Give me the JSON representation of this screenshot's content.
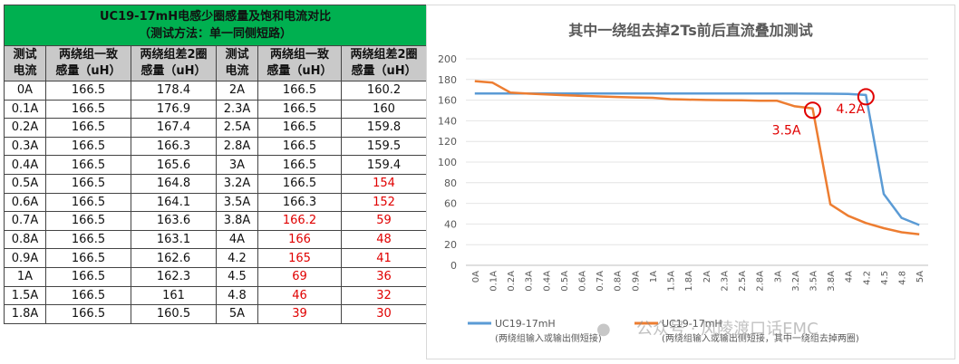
{
  "table": {
    "title": "UC19-17mH电感少圈感量及饱和电流对比",
    "subtitle": "（测试方法：单一同侧短路）",
    "headers": [
      {
        "line1": "测试",
        "line2": "电流"
      },
      {
        "line1": "两绕组一致",
        "line2": "感量（uH）"
      },
      {
        "line1": "两绕组差2圈",
        "line2": "感量（uH）"
      },
      {
        "line1": "测试",
        "line2": "电流"
      },
      {
        "line1": "两绕组一致",
        "line2": "感量（uH）"
      },
      {
        "line1": "两绕组差2圈",
        "line2": "感量（uH）"
      }
    ],
    "rows": [
      [
        "0A",
        "166.5",
        "178.4",
        "2A",
        "166.5",
        "160.2"
      ],
      [
        "0.1A",
        "166.5",
        "176.9",
        "2.3A",
        "166.5",
        "160"
      ],
      [
        "0.2A",
        "166.5",
        "167.4",
        "2.5A",
        "166.5",
        "159.8"
      ],
      [
        "0.3A",
        "166.5",
        "166.3",
        "2.8A",
        "166.5",
        "159.5"
      ],
      [
        "0.4A",
        "166.5",
        "165.6",
        "3A",
        "166.5",
        "159.4"
      ],
      [
        "0.5A",
        "166.5",
        "164.8",
        "3.2A",
        "166.5",
        "154"
      ],
      [
        "0.6A",
        "166.5",
        "164.1",
        "3.5A",
        "166.3",
        "152"
      ],
      [
        "0.7A",
        "166.5",
        "163.6",
        "3.8A",
        "166.2",
        "59"
      ],
      [
        "0.8A",
        "166.5",
        "163.1",
        "4A",
        "166",
        "48"
      ],
      [
        "0.9A",
        "166.5",
        "162.6",
        "4.2",
        "165",
        "41"
      ],
      [
        "1A",
        "166.5",
        "162.3",
        "4.5",
        "69",
        "36"
      ],
      [
        "1.5A",
        "166.5",
        "161",
        "4.8",
        "46",
        "32"
      ],
      [
        "1.8A",
        "166.5",
        "160.5",
        "5A",
        "39",
        "30"
      ]
    ],
    "red_cells": [
      [
        5,
        5
      ],
      [
        6,
        5
      ],
      [
        7,
        4
      ],
      [
        7,
        5
      ],
      [
        8,
        4
      ],
      [
        8,
        5
      ],
      [
        9,
        4
      ],
      [
        9,
        5
      ],
      [
        10,
        4
      ],
      [
        10,
        5
      ],
      [
        11,
        4
      ],
      [
        11,
        5
      ],
      [
        12,
        4
      ],
      [
        12,
        5
      ]
    ],
    "colors": {
      "title_bg": "#00b050",
      "header_bg": "#c9c9c9",
      "highlight_text": "#e00000"
    }
  },
  "chart_data": {
    "type": "line",
    "title": "其中一绕组去掉2Ts前后直流叠加测试",
    "xlabel": "",
    "ylabel": "",
    "ylim": [
      0,
      200
    ],
    "yticks": [
      0,
      20,
      40,
      60,
      80,
      100,
      120,
      140,
      160,
      180,
      200
    ],
    "grid": true,
    "legend_position": "bottom-left",
    "categories": [
      "0A",
      "0.1A",
      "0.2A",
      "0.3A",
      "0.4A",
      "0.5A",
      "0.6A",
      "0.7A",
      "0.8A",
      "0.9A",
      "1A",
      "1.5A",
      "1.8A",
      "2A",
      "2.3A",
      "2.5A",
      "2.8A",
      "3A",
      "3.2A",
      "3.5A",
      "3.8A",
      "4A",
      "4.2",
      "4.5",
      "4.8",
      "5A"
    ],
    "series": [
      {
        "name": "UC19-17mH",
        "name2": "(两绕组输入或输出侧短接)",
        "color": "#5b9bd5",
        "values": [
          166.5,
          166.5,
          166.5,
          166.5,
          166.5,
          166.5,
          166.5,
          166.5,
          166.5,
          166.5,
          166.5,
          166.5,
          166.5,
          166.5,
          166.5,
          166.5,
          166.5,
          166.5,
          166.5,
          166.3,
          166.2,
          166,
          165,
          69,
          46,
          39
        ]
      },
      {
        "name": "UC19-17mH",
        "name2": "(两绕组输入或输出侧短接，其中一绕组去掉两圈)",
        "color": "#ed7d31",
        "values": [
          178.4,
          176.9,
          167.4,
          166.3,
          165.6,
          164.8,
          164.1,
          163.6,
          163.1,
          162.6,
          162.3,
          161,
          160.5,
          160.2,
          160,
          159.8,
          159.5,
          159.4,
          154,
          152,
          59,
          48,
          41,
          36,
          32,
          30
        ]
      }
    ],
    "annotations": [
      {
        "text": "3.5A",
        "x": "3.5A",
        "y": 152,
        "color": "#e00000"
      },
      {
        "text": "4.2A",
        "x": "4.2",
        "y": 165,
        "color": "#e00000"
      }
    ],
    "watermark": "公众号 · 风陵渡口话EMC"
  }
}
